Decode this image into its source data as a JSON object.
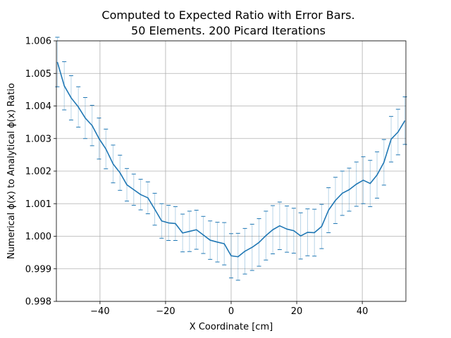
{
  "chart_data": {
    "type": "line",
    "title_line1": "Computed to Expected Ratio with Error Bars.",
    "title_line2": "50 Elements. 200 Picard Iterations",
    "xlabel": "X Coordinate [cm]",
    "ylabel": "Numerical ϕ(x) to Analytical ϕ(x) Ratio",
    "xlim": [
      -53.3,
      53.3
    ],
    "ylim": [
      0.998,
      1.006
    ],
    "xticks": [
      -40,
      -20,
      0,
      20,
      40
    ],
    "xtick_labels": [
      "−40",
      "−20",
      "0",
      "20",
      "40"
    ],
    "yticks": [
      0.998,
      0.999,
      1.0,
      1.001,
      1.002,
      1.003,
      1.004,
      1.005,
      1.006
    ],
    "ytick_labels": [
      "0.998",
      "0.999",
      "1.000",
      "1.001",
      "1.002",
      "1.003",
      "1.004",
      "1.005",
      "1.006"
    ],
    "grid": true,
    "color": "#1f77b4",
    "series": [
      {
        "x": [
          -53.0,
          -50.9,
          -48.8,
          -46.6,
          -44.5,
          -42.4,
          -40.3,
          -38.2,
          -36.0,
          -33.9,
          -31.8,
          -29.7,
          -27.6,
          -25.4,
          -23.3,
          -21.2,
          -19.1,
          -17.0,
          -14.8,
          -12.7,
          -10.6,
          -8.5,
          -6.4,
          -4.2,
          -2.1,
          0.0,
          2.1,
          4.2,
          6.4,
          8.5,
          10.6,
          12.7,
          14.8,
          17.0,
          19.1,
          21.2,
          23.3,
          25.4,
          27.6,
          29.7,
          31.8,
          33.9,
          36.0,
          38.2,
          40.3,
          42.4,
          44.5,
          46.6,
          48.8,
          50.9,
          53.0
        ],
        "y": [
          1.00535,
          1.00462,
          1.00425,
          1.00397,
          1.00363,
          1.0034,
          1.003,
          1.00268,
          1.00222,
          1.00195,
          1.00158,
          1.00143,
          1.00128,
          1.00118,
          1.00083,
          1.00047,
          1.00041,
          1.00039,
          1.0001,
          1.00015,
          1.0002,
          1.00004,
          0.99988,
          0.99982,
          0.99977,
          0.9994,
          0.99937,
          0.99954,
          0.99966,
          0.99981,
          1.00002,
          1.0002,
          1.00032,
          1.00022,
          1.00017,
          1.00001,
          1.00012,
          1.00011,
          1.0003,
          1.0008,
          1.0011,
          1.00132,
          1.00143,
          1.0016,
          1.00172,
          1.00162,
          1.00188,
          1.00227,
          1.00298,
          1.0032,
          1.00355
        ],
        "err": [
          0.00076,
          0.00074,
          0.00068,
          0.00062,
          0.00063,
          0.00062,
          0.00063,
          0.00061,
          0.00058,
          0.00054,
          0.0005,
          0.00048,
          0.00047,
          0.00049,
          0.00049,
          0.00053,
          0.00054,
          0.00052,
          0.00058,
          0.00062,
          0.0006,
          0.00057,
          0.00059,
          0.00061,
          0.00065,
          0.00068,
          0.00072,
          0.0007,
          0.00071,
          0.00073,
          0.00075,
          0.00074,
          0.00073,
          0.00071,
          0.00069,
          0.00071,
          0.00072,
          0.00072,
          0.00068,
          0.00069,
          0.00071,
          0.00068,
          0.00066,
          0.00068,
          0.00072,
          0.00071,
          0.00071,
          0.0007,
          0.0007,
          0.0007,
          0.00073
        ]
      }
    ]
  }
}
